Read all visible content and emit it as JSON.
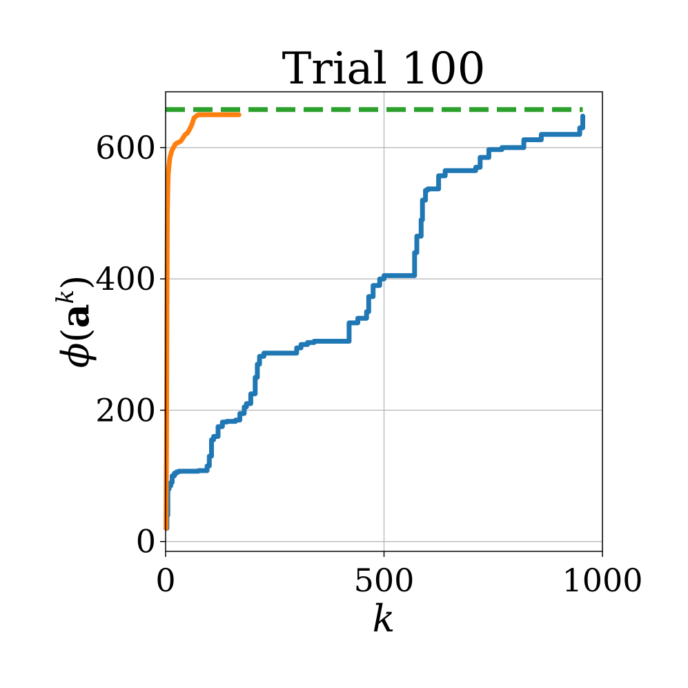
{
  "chart_data": {
    "type": "line",
    "title": "Trial 100",
    "xlabel": "k",
    "ylabel": "ϕ(a^k)",
    "ylabel_parts": {
      "phi": "ϕ",
      "open": "(",
      "a": "a",
      "k": "k",
      "close": ")"
    },
    "xlim": [
      0,
      1000
    ],
    "ylim": [
      -15,
      685
    ],
    "xticks": [
      0,
      500,
      1000
    ],
    "yticks": [
      0,
      200,
      400,
      600
    ],
    "xtick_labels": [
      "0",
      "500",
      "1000"
    ],
    "ytick_labels": [
      "0",
      "200",
      "400",
      "600"
    ],
    "grid": true,
    "legend": "none",
    "series": [
      {
        "color": "#1f77b4",
        "style": "solid",
        "x": [
          1,
          3,
          5,
          8,
          12,
          15,
          20,
          25,
          30,
          45,
          60,
          75,
          95,
          100,
          105,
          110,
          120,
          130,
          140,
          150,
          160,
          170,
          180,
          185,
          195,
          205,
          210,
          215,
          225,
          240,
          260,
          300,
          310,
          325,
          340,
          380,
          415,
          420,
          440,
          460,
          465,
          475,
          490,
          500,
          540,
          565,
          570,
          575,
          585,
          588,
          595,
          600,
          620,
          625,
          640,
          700,
          710,
          720,
          740,
          770,
          790,
          820,
          860,
          900,
          940,
          948,
          955
        ],
        "y": [
          20,
          40,
          80,
          85,
          90,
          100,
          104,
          106,
          107,
          107,
          107,
          108,
          115,
          130,
          155,
          160,
          175,
          182,
          183,
          183,
          185,
          195,
          205,
          210,
          225,
          250,
          270,
          282,
          287,
          287,
          287,
          295,
          300,
          303,
          305,
          305,
          305,
          333,
          340,
          350,
          373,
          390,
          400,
          405,
          405,
          405,
          440,
          465,
          490,
          520,
          535,
          537,
          537,
          557,
          565,
          565,
          570,
          585,
          597,
          600,
          600,
          612,
          620,
          620,
          620,
          630,
          648
        ]
      },
      {
        "color": "#ff7f0e",
        "style": "solid",
        "x": [
          1,
          2,
          3,
          4,
          5,
          6,
          8,
          10,
          14,
          18,
          22,
          26,
          30,
          35,
          40,
          45,
          50,
          55,
          60,
          65,
          70,
          75,
          80,
          100,
          130,
          150,
          160,
          168
        ],
        "y": [
          20,
          150,
          350,
          500,
          540,
          560,
          575,
          585,
          595,
          600,
          605,
          607,
          608,
          610,
          615,
          620,
          622,
          628,
          635,
          645,
          648,
          650,
          650,
          650,
          650,
          650,
          650,
          650
        ]
      },
      {
        "color": "#2ca02c",
        "style": "dashed",
        "x": [
          0,
          955
        ],
        "y": [
          658,
          658
        ]
      }
    ]
  }
}
